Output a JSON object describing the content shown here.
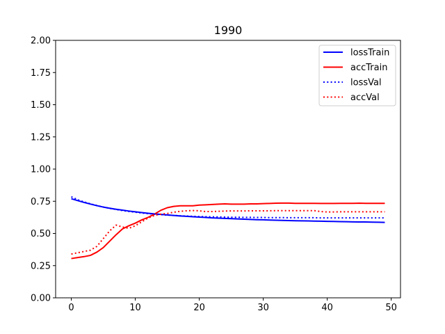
{
  "chart_data": {
    "type": "line",
    "title": "1990",
    "xlabel": "",
    "ylabel": "",
    "xlim": [
      -2.45,
      51.45
    ],
    "ylim": [
      0,
      2
    ],
    "xticks": [
      0,
      10,
      20,
      30,
      40,
      50
    ],
    "yticks": [
      0.0,
      0.25,
      0.5,
      0.75,
      1.0,
      1.25,
      1.5,
      1.75,
      2.0
    ],
    "xtick_labels": [
      "0",
      "10",
      "20",
      "30",
      "40",
      "50"
    ],
    "ytick_labels": [
      "0.00",
      "0.25",
      "0.50",
      "0.75",
      "1.00",
      "1.25",
      "1.50",
      "1.75",
      "2.00"
    ],
    "grid": false,
    "legend_position": "top-right",
    "x": [
      0,
      1,
      2,
      3,
      4,
      5,
      6,
      7,
      8,
      9,
      10,
      11,
      12,
      13,
      14,
      15,
      16,
      17,
      18,
      19,
      20,
      21,
      22,
      23,
      24,
      25,
      26,
      27,
      28,
      29,
      30,
      31,
      32,
      33,
      34,
      35,
      36,
      37,
      38,
      39,
      40,
      41,
      42,
      43,
      44,
      45,
      46,
      47,
      48,
      49
    ],
    "series": [
      {
        "name": "lossTrain",
        "color": "#0000ff",
        "dash": "solid",
        "values": [
          0.77,
          0.755,
          0.741,
          0.728,
          0.716,
          0.705,
          0.696,
          0.688,
          0.681,
          0.674,
          0.668,
          0.662,
          0.657,
          0.652,
          0.648,
          0.644,
          0.64,
          0.636,
          0.633,
          0.63,
          0.627,
          0.624,
          0.621,
          0.619,
          0.617,
          0.615,
          0.613,
          0.611,
          0.609,
          0.607,
          0.606,
          0.604,
          0.603,
          0.601,
          0.6,
          0.599,
          0.598,
          0.597,
          0.596,
          0.595,
          0.594,
          0.593,
          0.592,
          0.591,
          0.59,
          0.589,
          0.589,
          0.588,
          0.587,
          0.586
        ]
      },
      {
        "name": "accTrain",
        "color": "#ff0000",
        "dash": "solid",
        "values": [
          0.305,
          0.313,
          0.32,
          0.33,
          0.355,
          0.39,
          0.44,
          0.49,
          0.535,
          0.56,
          0.58,
          0.605,
          0.625,
          0.65,
          0.68,
          0.7,
          0.71,
          0.715,
          0.715,
          0.715,
          0.72,
          0.722,
          0.725,
          0.728,
          0.73,
          0.728,
          0.728,
          0.728,
          0.73,
          0.73,
          0.732,
          0.733,
          0.735,
          0.736,
          0.736,
          0.734,
          0.734,
          0.734,
          0.734,
          0.733,
          0.733,
          0.733,
          0.734,
          0.734,
          0.734,
          0.735,
          0.734,
          0.734,
          0.734,
          0.734
        ]
      },
      {
        "name": "lossVal",
        "color": "#0000ff",
        "dash": "dotted",
        "values": [
          0.785,
          0.762,
          0.745,
          0.73,
          0.717,
          0.705,
          0.695,
          0.686,
          0.678,
          0.671,
          0.665,
          0.659,
          0.654,
          0.65,
          0.646,
          0.643,
          0.64,
          0.637,
          0.635,
          0.633,
          0.631,
          0.63,
          0.629,
          0.628,
          0.627,
          0.626,
          0.626,
          0.625,
          0.625,
          0.624,
          0.624,
          0.623,
          0.623,
          0.623,
          0.622,
          0.622,
          0.622,
          0.622,
          0.622,
          0.621,
          0.621,
          0.621,
          0.621,
          0.621,
          0.621,
          0.621,
          0.621,
          0.621,
          0.621,
          0.621
        ]
      },
      {
        "name": "accVal",
        "color": "#ff0000",
        "dash": "dotted",
        "values": [
          0.34,
          0.35,
          0.36,
          0.37,
          0.4,
          0.46,
          0.52,
          0.565,
          0.55,
          0.54,
          0.56,
          0.59,
          0.62,
          0.64,
          0.65,
          0.655,
          0.665,
          0.672,
          0.676,
          0.678,
          0.676,
          0.67,
          0.67,
          0.672,
          0.674,
          0.675,
          0.675,
          0.675,
          0.676,
          0.676,
          0.676,
          0.676,
          0.677,
          0.677,
          0.677,
          0.677,
          0.677,
          0.677,
          0.677,
          0.67,
          0.667,
          0.667,
          0.668,
          0.668,
          0.668,
          0.668,
          0.668,
          0.668,
          0.668,
          0.668
        ]
      }
    ]
  }
}
